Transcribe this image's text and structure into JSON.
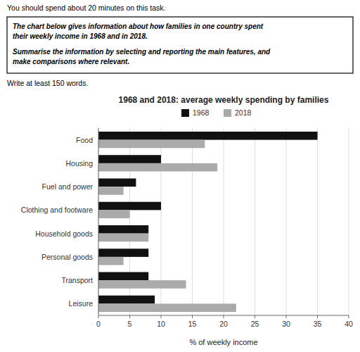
{
  "chart_data": {
    "type": "bar",
    "orientation": "horizontal",
    "title": "1968 and 2018: average weekly spending by families",
    "xlabel": "% of weekly income",
    "categories": [
      "Food",
      "Housing",
      "Fuel and power",
      "Clothing and footware",
      "Household goods",
      "Personal goods",
      "Transport",
      "Leisure"
    ],
    "series": [
      {
        "name": "1968",
        "color": "#111111",
        "values": [
          35,
          10,
          6,
          10,
          8,
          8,
          8,
          9
        ]
      },
      {
        "name": "2018",
        "color": "#aaaaaa",
        "values": [
          17,
          19,
          4,
          5,
          8,
          4,
          14,
          22
        ]
      }
    ],
    "xlim": [
      0,
      40
    ],
    "xticks": [
      0,
      5,
      10,
      15,
      20,
      25,
      30,
      35,
      40
    ],
    "grid": true,
    "legend": "top",
    "annotations": [
      "You should spend about 20 minutes on this task.",
      "The chart below gives information about how families in one country spent\ntheir weekly income in 1968 and in 2018.",
      "Summarise the information by selecting and reporting the main features, and\nmake comparisons where relevant.",
      "Write at least 150 words."
    ]
  }
}
